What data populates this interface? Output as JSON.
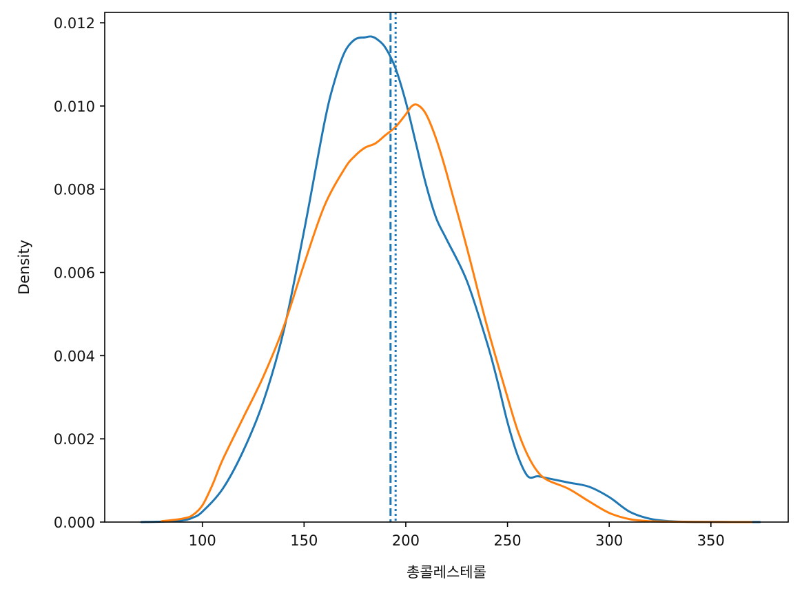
{
  "chart_data": {
    "type": "line",
    "title": "",
    "xlabel": "총콜레스테롤",
    "ylabel": "Density",
    "xlim": [
      52,
      388
    ],
    "ylim": [
      0,
      0.01225
    ],
    "xticks": [
      100,
      150,
      200,
      250,
      300,
      350
    ],
    "yticks": [
      0.0,
      0.002,
      0.004,
      0.006,
      0.008,
      0.01,
      0.012
    ],
    "ytick_labels": [
      "0.000",
      "0.002",
      "0.004",
      "0.006",
      "0.008",
      "0.010",
      "0.012"
    ],
    "grid": false,
    "legend": "none",
    "colors": {
      "blue": "#1f77b4",
      "orange": "#ff7f0e"
    },
    "series": [
      {
        "color": "#1f77b4",
        "x": [
          70,
          80,
          90,
          95,
          100,
          110,
          120,
          130,
          140,
          150,
          160,
          165,
          170,
          175,
          180,
          183,
          186,
          190,
          195,
          200,
          205,
          210,
          215,
          220,
          230,
          240,
          245,
          250,
          255,
          260,
          265,
          270,
          280,
          290,
          300,
          310,
          320,
          330,
          340,
          350,
          360,
          374
        ],
        "y": [
          0,
          1e-05,
          4e-05,
          0.0001,
          0.00025,
          0.0008,
          0.0017,
          0.0029,
          0.0046,
          0.007,
          0.0096,
          0.0106,
          0.0113,
          0.0116,
          0.01165,
          0.01167,
          0.0116,
          0.0114,
          0.0109,
          0.0101,
          0.0091,
          0.0081,
          0.0073,
          0.0068,
          0.0058,
          0.0043,
          0.0034,
          0.0024,
          0.0016,
          0.0011,
          0.0011,
          0.00105,
          0.00095,
          0.00085,
          0.0006,
          0.00025,
          8e-05,
          2e-05,
          5e-06,
          2e-06,
          1e-06,
          0
        ]
      },
      {
        "color": "#ff7f0e",
        "x": [
          80,
          90,
          95,
          100,
          105,
          110,
          120,
          130,
          140,
          150,
          160,
          170,
          175,
          180,
          185,
          190,
          195,
          200,
          203,
          206,
          210,
          215,
          220,
          230,
          240,
          250,
          255,
          260,
          265,
          270,
          280,
          290,
          300,
          310,
          320,
          330,
          340,
          350,
          360,
          370
        ],
        "y": [
          2e-05,
          8e-05,
          0.00016,
          0.0004,
          0.0009,
          0.0015,
          0.0025,
          0.0035,
          0.0047,
          0.0062,
          0.0076,
          0.0085,
          0.0088,
          0.009,
          0.0091,
          0.0093,
          0.0095,
          0.0098,
          0.01,
          0.01002,
          0.0098,
          0.0092,
          0.0084,
          0.0066,
          0.0047,
          0.003,
          0.0022,
          0.0016,
          0.0012,
          0.001,
          0.0008,
          0.0005,
          0.00022,
          7e-05,
          2e-05,
          1e-05,
          5e-06,
          2e-06,
          1e-06,
          0
        ]
      }
    ],
    "vlines": [
      {
        "x": 192.5,
        "style": "dashed",
        "color": "#1f77b4"
      },
      {
        "x": 195,
        "style": "dotted",
        "color": "#1f77b4"
      }
    ]
  }
}
